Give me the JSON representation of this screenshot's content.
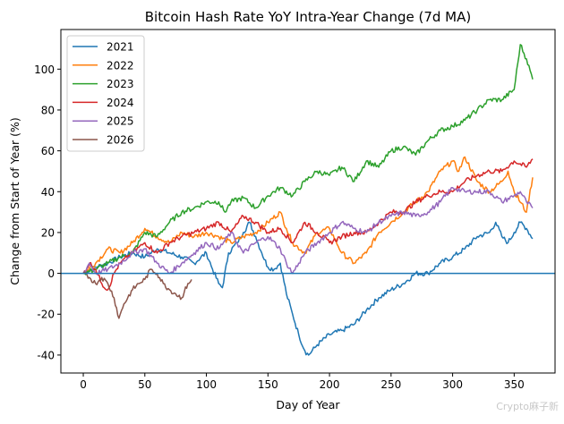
{
  "chart_data": {
    "type": "line",
    "title": "Bitcoin Hash Rate YoY Intra-Year Change (7d MA)",
    "xlabel": "Day of Year",
    "ylabel": "Change from Start of Year (%)",
    "xlim": [
      -18.2,
      383.2
    ],
    "ylim": [
      -48.8,
      119.4
    ],
    "xticks": [
      0,
      50,
      100,
      150,
      200,
      250,
      300,
      350
    ],
    "yticks": [
      -40,
      -20,
      0,
      20,
      40,
      60,
      80,
      100
    ],
    "grid": false,
    "legend_position": "top-left",
    "hline": {
      "y": 0,
      "color": "#1f77b4"
    },
    "series": [
      {
        "name": "2021",
        "color": "#1f77b4",
        "points": [
          [
            0,
            0
          ],
          [
            10,
            3
          ],
          [
            20,
            5
          ],
          [
            30,
            8
          ],
          [
            40,
            10
          ],
          [
            50,
            8
          ],
          [
            60,
            12
          ],
          [
            70,
            10
          ],
          [
            80,
            8
          ],
          [
            90,
            5
          ],
          [
            100,
            10
          ],
          [
            105,
            2
          ],
          [
            110,
            -5
          ],
          [
            113,
            -7
          ],
          [
            118,
            10
          ],
          [
            125,
            15
          ],
          [
            130,
            20
          ],
          [
            135,
            25
          ],
          [
            140,
            18
          ],
          [
            145,
            10
          ],
          [
            150,
            3
          ],
          [
            155,
            2
          ],
          [
            160,
            5
          ],
          [
            165,
            -10
          ],
          [
            170,
            -20
          ],
          [
            175,
            -30
          ],
          [
            180,
            -38
          ],
          [
            183,
            -40
          ],
          [
            190,
            -35
          ],
          [
            200,
            -30
          ],
          [
            210,
            -28
          ],
          [
            220,
            -25
          ],
          [
            230,
            -18
          ],
          [
            240,
            -12
          ],
          [
            250,
            -8
          ],
          [
            260,
            -5
          ],
          [
            270,
            0
          ],
          [
            280,
            0
          ],
          [
            290,
            5
          ],
          [
            300,
            8
          ],
          [
            310,
            12
          ],
          [
            320,
            18
          ],
          [
            330,
            20
          ],
          [
            335,
            25
          ],
          [
            340,
            18
          ],
          [
            345,
            15
          ],
          [
            350,
            20
          ],
          [
            355,
            25
          ],
          [
            360,
            22
          ],
          [
            365,
            17
          ]
        ]
      },
      {
        "name": "2022",
        "color": "#ff7f0e",
        "points": [
          [
            0,
            0
          ],
          [
            10,
            5
          ],
          [
            20,
            12
          ],
          [
            30,
            10
          ],
          [
            40,
            15
          ],
          [
            50,
            22
          ],
          [
            55,
            20
          ],
          [
            60,
            18
          ],
          [
            70,
            15
          ],
          [
            80,
            20
          ],
          [
            90,
            18
          ],
          [
            100,
            20
          ],
          [
            110,
            18
          ],
          [
            120,
            15
          ],
          [
            130,
            18
          ],
          [
            140,
            20
          ],
          [
            150,
            25
          ],
          [
            160,
            30
          ],
          [
            165,
            22
          ],
          [
            170,
            15
          ],
          [
            180,
            10
          ],
          [
            190,
            20
          ],
          [
            200,
            22
          ],
          [
            210,
            10
          ],
          [
            220,
            5
          ],
          [
            230,
            10
          ],
          [
            240,
            20
          ],
          [
            250,
            25
          ],
          [
            260,
            30
          ],
          [
            270,
            35
          ],
          [
            280,
            40
          ],
          [
            290,
            50
          ],
          [
            300,
            55
          ],
          [
            305,
            50
          ],
          [
            310,
            57
          ],
          [
            320,
            45
          ],
          [
            330,
            40
          ],
          [
            340,
            45
          ],
          [
            345,
            50
          ],
          [
            350,
            40
          ],
          [
            360,
            30
          ],
          [
            365,
            47
          ]
        ]
      },
      {
        "name": "2023",
        "color": "#2ca02c",
        "points": [
          [
            0,
            0
          ],
          [
            10,
            2
          ],
          [
            20,
            5
          ],
          [
            30,
            8
          ],
          [
            40,
            10
          ],
          [
            50,
            20
          ],
          [
            60,
            18
          ],
          [
            70,
            25
          ],
          [
            80,
            30
          ],
          [
            90,
            32
          ],
          [
            100,
            35
          ],
          [
            110,
            35
          ],
          [
            115,
            30
          ],
          [
            120,
            35
          ],
          [
            130,
            37
          ],
          [
            140,
            32
          ],
          [
            150,
            38
          ],
          [
            160,
            42
          ],
          [
            170,
            38
          ],
          [
            180,
            45
          ],
          [
            190,
            50
          ],
          [
            200,
            48
          ],
          [
            210,
            52
          ],
          [
            220,
            45
          ],
          [
            230,
            55
          ],
          [
            240,
            52
          ],
          [
            250,
            60
          ],
          [
            260,
            62
          ],
          [
            270,
            58
          ],
          [
            280,
            65
          ],
          [
            290,
            70
          ],
          [
            300,
            72
          ],
          [
            310,
            75
          ],
          [
            320,
            80
          ],
          [
            330,
            85
          ],
          [
            340,
            85
          ],
          [
            350,
            90
          ],
          [
            355,
            112
          ],
          [
            360,
            105
          ],
          [
            365,
            95
          ]
        ]
      },
      {
        "name": "2024",
        "color": "#d62728",
        "points": [
          [
            0,
            0
          ],
          [
            5,
            5
          ],
          [
            10,
            2
          ],
          [
            15,
            -5
          ],
          [
            20,
            -8
          ],
          [
            25,
            0
          ],
          [
            30,
            5
          ],
          [
            40,
            10
          ],
          [
            50,
            15
          ],
          [
            60,
            10
          ],
          [
            70,
            15
          ],
          [
            80,
            18
          ],
          [
            90,
            20
          ],
          [
            100,
            22
          ],
          [
            110,
            25
          ],
          [
            120,
            20
          ],
          [
            130,
            28
          ],
          [
            140,
            25
          ],
          [
            150,
            20
          ],
          [
            160,
            22
          ],
          [
            170,
            15
          ],
          [
            180,
            25
          ],
          [
            190,
            20
          ],
          [
            200,
            15
          ],
          [
            210,
            18
          ],
          [
            220,
            20
          ],
          [
            230,
            20
          ],
          [
            240,
            25
          ],
          [
            250,
            30
          ],
          [
            260,
            30
          ],
          [
            270,
            35
          ],
          [
            280,
            38
          ],
          [
            290,
            40
          ],
          [
            300,
            40
          ],
          [
            310,
            45
          ],
          [
            320,
            48
          ],
          [
            330,
            50
          ],
          [
            340,
            50
          ],
          [
            350,
            55
          ],
          [
            360,
            52
          ],
          [
            365,
            56
          ]
        ]
      },
      {
        "name": "2025",
        "color": "#9467bd",
        "points": [
          [
            0,
            0
          ],
          [
            5,
            5
          ],
          [
            10,
            0
          ],
          [
            20,
            2
          ],
          [
            30,
            5
          ],
          [
            40,
            10
          ],
          [
            50,
            12
          ],
          [
            60,
            5
          ],
          [
            70,
            0
          ],
          [
            80,
            5
          ],
          [
            90,
            10
          ],
          [
            100,
            15
          ],
          [
            110,
            12
          ],
          [
            120,
            20
          ],
          [
            130,
            10
          ],
          [
            140,
            15
          ],
          [
            150,
            18
          ],
          [
            160,
            12
          ],
          [
            165,
            5
          ],
          [
            170,
            0
          ],
          [
            175,
            5
          ],
          [
            180,
            10
          ],
          [
            190,
            15
          ],
          [
            200,
            20
          ],
          [
            210,
            25
          ],
          [
            220,
            22
          ],
          [
            230,
            20
          ],
          [
            240,
            25
          ],
          [
            250,
            28
          ],
          [
            260,
            30
          ],
          [
            270,
            28
          ],
          [
            280,
            30
          ],
          [
            290,
            35
          ],
          [
            300,
            42
          ],
          [
            310,
            40
          ],
          [
            320,
            40
          ],
          [
            330,
            40
          ],
          [
            340,
            35
          ],
          [
            350,
            38
          ],
          [
            355,
            40
          ],
          [
            360,
            35
          ],
          [
            365,
            32
          ]
        ]
      },
      {
        "name": "2026",
        "color": "#8c564b",
        "points": [
          [
            0,
            0
          ],
          [
            5,
            -2
          ],
          [
            10,
            -5
          ],
          [
            15,
            -2
          ],
          [
            20,
            -5
          ],
          [
            25,
            -12
          ],
          [
            29,
            -22
          ],
          [
            33,
            -15
          ],
          [
            40,
            -8
          ],
          [
            45,
            -5
          ],
          [
            50,
            -3
          ],
          [
            55,
            2
          ],
          [
            60,
            0
          ],
          [
            65,
            -5
          ],
          [
            70,
            -8
          ],
          [
            75,
            -10
          ],
          [
            80,
            -12
          ],
          [
            85,
            -5
          ],
          [
            88,
            -3
          ]
        ]
      }
    ]
  },
  "watermark": "Crypto麻子新"
}
